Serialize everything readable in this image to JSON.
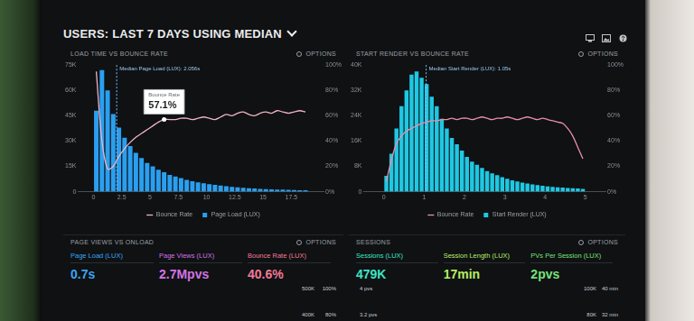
{
  "header": {
    "title": "USERS: LAST 7 DAYS USING MEDIAN"
  },
  "panel_menu": "OPTIONS",
  "chart_data": [
    {
      "type": "histogram",
      "title": "LOAD TIME VS BOUNCE RATE",
      "bins": [
        0,
        0.5,
        1,
        1.5,
        2,
        2.5,
        3,
        3.5,
        4,
        4.5,
        5,
        5.5,
        6,
        6.5,
        7,
        7.5,
        8,
        8.5,
        9,
        9.5,
        10,
        10.5,
        11,
        11.5,
        12,
        12.5,
        13,
        13.5,
        14,
        14.5,
        15,
        15.5,
        16,
        16.5,
        17,
        17.5,
        18,
        18.5,
        19
      ],
      "series": [
        {
          "name": "Page Load (LUX)",
          "color": "#2a9ff0",
          "values": [
            48000,
            72000,
            60000,
            46000,
            38000,
            32000,
            27000,
            23000,
            20000,
            17000,
            15000,
            13000,
            11500,
            10000,
            9000,
            8000,
            7000,
            6200,
            5500,
            5000,
            4500,
            4000,
            3600,
            3200,
            2900,
            2600,
            2300,
            2100,
            1900,
            1700,
            1500,
            1400,
            1300,
            1200,
            1100,
            1000,
            900,
            800
          ]
        },
        {
          "name": "Bounce Rate",
          "color": "#f1b3c0",
          "type": "line",
          "axis": "y2",
          "values": [
            95,
            40,
            18,
            20,
            28,
            34,
            39,
            43,
            46,
            49,
            52,
            55,
            57,
            57,
            57,
            58,
            58,
            57,
            58,
            59,
            58,
            57,
            59,
            61,
            60,
            62,
            63,
            61,
            60,
            62,
            63,
            62,
            64,
            63,
            62,
            63,
            64,
            63
          ]
        }
      ],
      "xlim": [
        0,
        19
      ],
      "xticks": [
        0,
        2.5,
        5,
        7.5,
        10,
        12.5,
        15,
        17.5
      ],
      "ylim": [
        0,
        75000
      ],
      "yticks": [
        0,
        {
          "value": 15000,
          "label": "15K"
        },
        {
          "value": 30000,
          "label": "30K"
        },
        {
          "value": 45000,
          "label": "45K"
        },
        {
          "value": 60000,
          "label": "60K"
        },
        {
          "value": 75000,
          "label": "75K"
        }
      ],
      "y2lim": [
        0,
        100
      ],
      "y2ticks": [
        {
          "value": 0,
          "label": "0%"
        },
        {
          "value": 20,
          "label": "20%"
        },
        {
          "value": 40,
          "label": "40%"
        },
        {
          "value": 60,
          "label": "60%"
        },
        {
          "value": 80,
          "label": "80%"
        },
        {
          "value": 100,
          "label": "100%"
        }
      ],
      "grid": false,
      "legend": "bottom",
      "annotations": [
        {
          "type": "vline",
          "x": 2.056,
          "text": "Median Page Load (LUX): 2.056s"
        },
        {
          "type": "tooltip",
          "x": 6.25,
          "y": 57.1,
          "axis": "y2",
          "title": "Bounce Rate",
          "text": "57.1%"
        }
      ]
    },
    {
      "type": "histogram",
      "title": "START RENDER VS BOUNCE RATE",
      "bins": [
        0,
        0.125,
        0.25,
        0.375,
        0.5,
        0.625,
        0.75,
        0.875,
        1,
        1.125,
        1.25,
        1.375,
        1.5,
        1.625,
        1.75,
        1.875,
        2,
        2.125,
        2.25,
        2.375,
        2.5,
        2.625,
        2.75,
        2.875,
        3,
        3.125,
        3.25,
        3.375,
        3.5,
        3.625,
        3.75,
        3.875,
        4,
        4.125,
        4.25,
        4.375,
        4.5,
        4.625,
        4.75,
        4.875,
        5
      ],
      "series": [
        {
          "name": "Start Render (LUX)",
          "color": "#1fc8e3",
          "values": [
            5000,
            12000,
            20000,
            27000,
            32000,
            37000,
            38000,
            36000,
            34000,
            30000,
            27000,
            23000,
            20000,
            17000,
            15000,
            13000,
            11000,
            9500,
            8500,
            7500,
            6500,
            5800,
            5200,
            4600,
            4100,
            3600,
            3200,
            2900,
            2600,
            2300,
            2100,
            1900,
            1700,
            1500,
            1400,
            1300,
            1200,
            1100,
            1000,
            900
          ]
        },
        {
          "name": "Bounce Rate",
          "color": "#ec8fa6",
          "type": "line",
          "axis": "y2",
          "values": [
            8,
            25,
            38,
            44,
            48,
            50,
            52,
            54,
            55,
            56,
            56,
            57,
            57,
            58,
            57,
            58,
            58,
            57,
            58,
            59,
            58,
            57,
            58,
            58,
            59,
            58,
            57,
            58,
            59,
            58,
            57,
            58,
            57,
            56,
            55,
            54,
            50,
            44,
            35,
            26
          ]
        }
      ],
      "xlim": [
        0,
        5
      ],
      "xticks": [
        0,
        1,
        2,
        3,
        4,
        5
      ],
      "ylim": [
        0,
        40000
      ],
      "yticks": [
        0,
        {
          "value": 8000,
          "label": "8K"
        },
        {
          "value": 16000,
          "label": "16K"
        },
        {
          "value": 24000,
          "label": "24K"
        },
        {
          "value": 32000,
          "label": "32K"
        },
        {
          "value": 40000,
          "label": "40K"
        }
      ],
      "y2lim": [
        0,
        100
      ],
      "y2ticks": [
        {
          "value": 0,
          "label": "0%"
        },
        {
          "value": 20,
          "label": "20%"
        },
        {
          "value": 40,
          "label": "40%"
        },
        {
          "value": 60,
          "label": "60%"
        },
        {
          "value": 80,
          "label": "80%"
        },
        {
          "value": 100,
          "label": "100%"
        }
      ],
      "grid": false,
      "legend": "bottom",
      "annotations": [
        {
          "type": "vline",
          "x": 1.05,
          "text": "Median Start Render (LUX): 1.05s"
        }
      ]
    }
  ],
  "kpi_panels": [
    {
      "title": "PAGE VIEWS VS ONLOAD",
      "metrics": [
        {
          "label": "Page Load (LUX)",
          "text": "0.7s",
          "color": "#3aa6f5"
        },
        {
          "label": "Page Views (LUX)",
          "text": "2.7Mpvs",
          "color": "#d374e3"
        },
        {
          "label": "Bounce Rate (LUX)",
          "text": "40.6%",
          "color": "#f27a96"
        }
      ],
      "left_axis_labels": [],
      "right_axis_labels": [
        [
          "500K",
          "100%"
        ],
        [
          "400K",
          "80%"
        ]
      ]
    },
    {
      "title": "SESSIONS",
      "metrics": [
        {
          "label": "Sessions (LUX)",
          "text": "479K",
          "color": "#3fe3c4"
        },
        {
          "label": "Session Length (LUX)",
          "text": "17min",
          "color": "#b6ee64"
        },
        {
          "label": "PVs Per Session (LUX)",
          "text": "2pvs",
          "color": "#78e27a"
        }
      ],
      "left_axis_labels": [
        [
          "4 pvs"
        ],
        [
          "3.2 pvs"
        ]
      ],
      "right_axis_labels": [
        [
          "100K",
          "40 min"
        ],
        [
          "80K",
          "32 min"
        ]
      ]
    }
  ]
}
